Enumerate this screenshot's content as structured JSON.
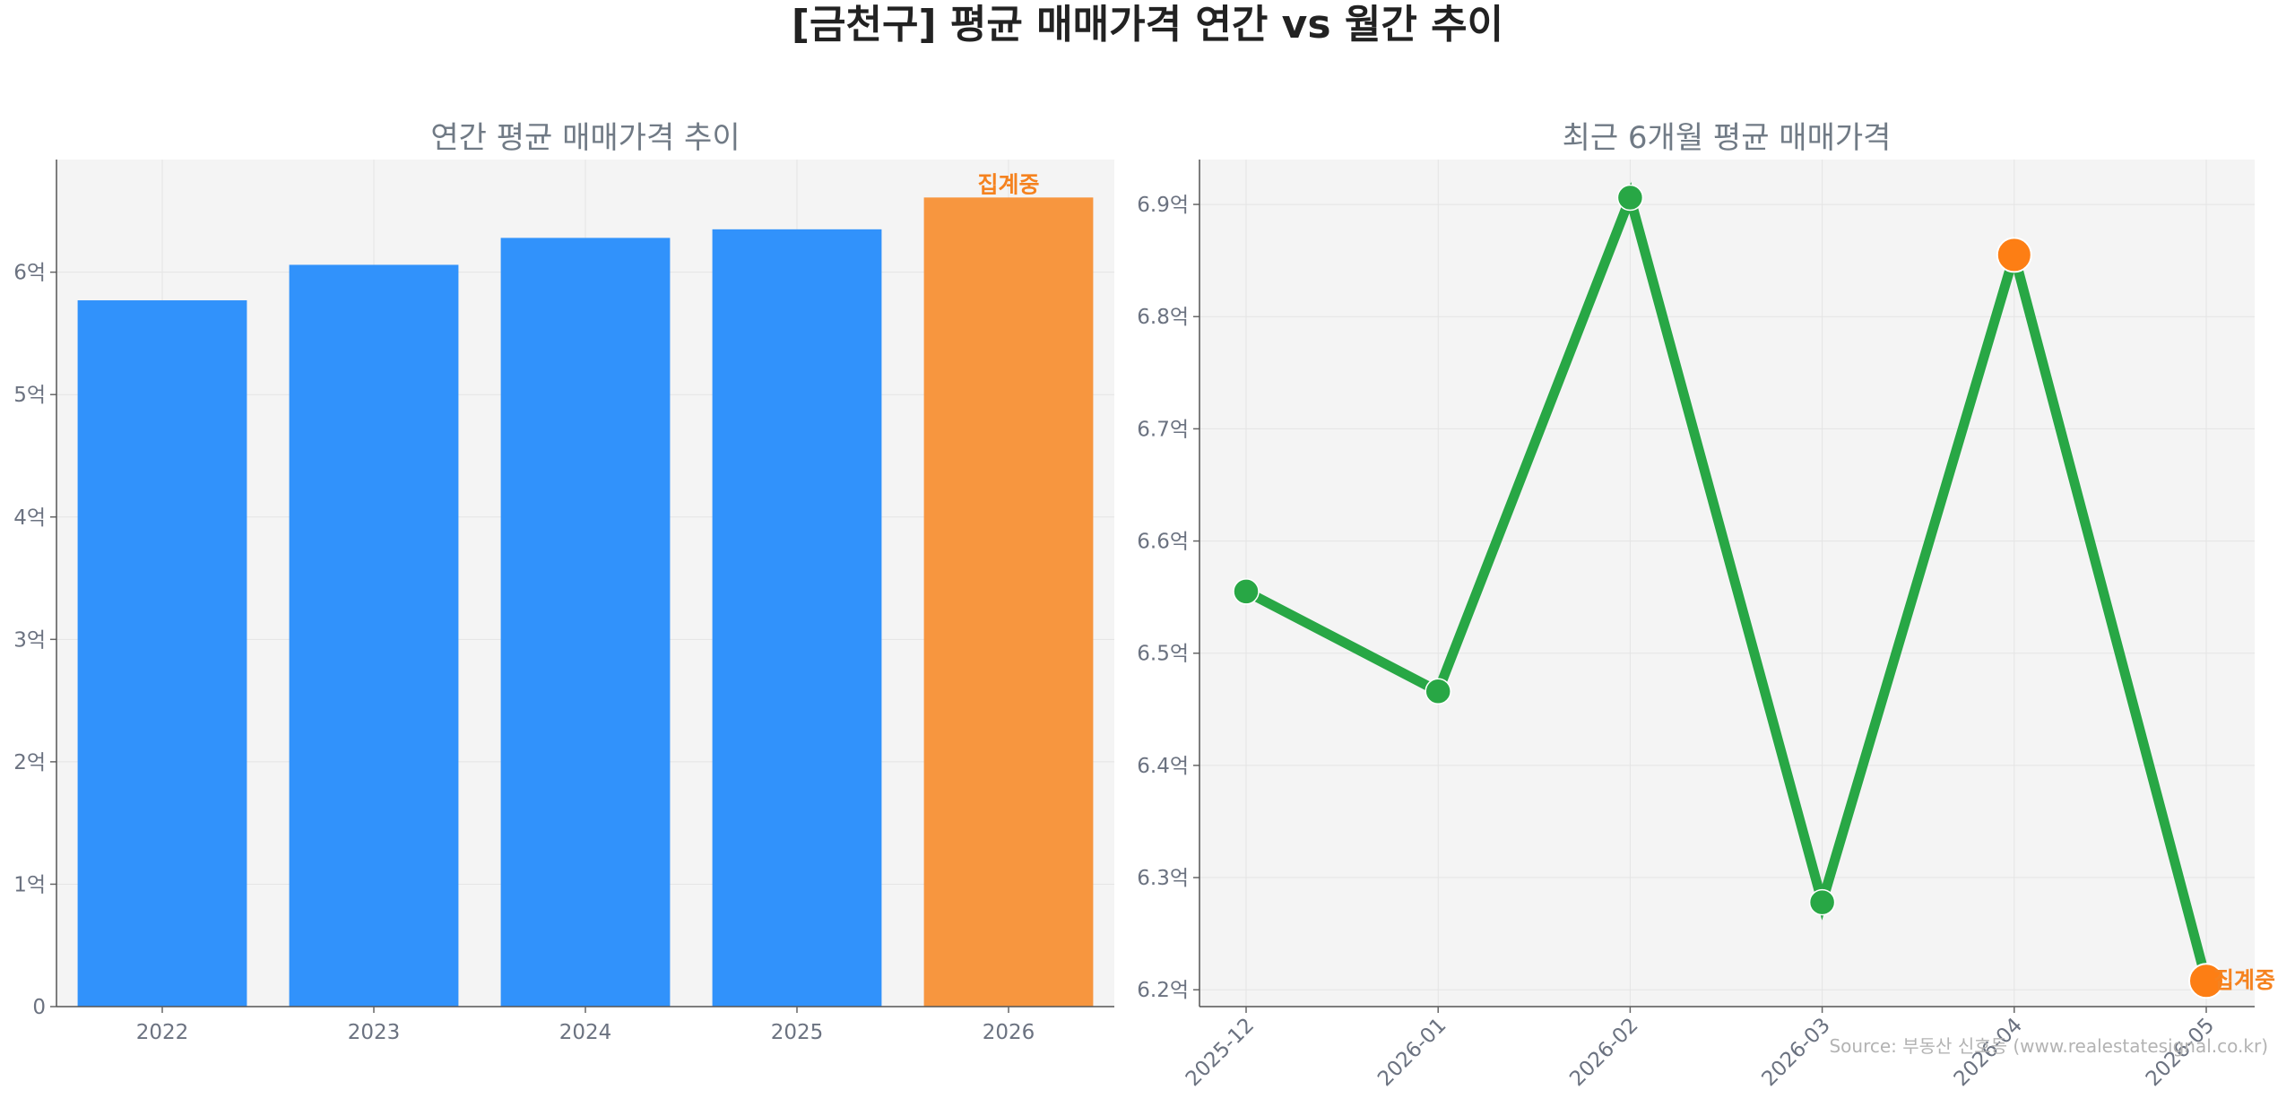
{
  "title": "[금천구] 평균 매매가격 연간 vs 월간 추이",
  "source": "Source: 부동산 신호등 (www.realestatesignal.co.kr)",
  "colors": {
    "bar_complete": "#3192fb",
    "bar_in_progress": "#f7963f",
    "line": "#28a745",
    "marker_highlight": "#fd7e14",
    "panel_bg": "#f4f4f4",
    "grid": "#e4e4e4",
    "note": "#f5821f"
  },
  "chart_data": [
    {
      "type": "bar",
      "title": "연간 평균 매매가격 추이",
      "xlabel": "",
      "ylabel": "",
      "categories": [
        "2022",
        "2023",
        "2024",
        "2025",
        "2026"
      ],
      "values": [
        5.77,
        6.06,
        6.28,
        6.35,
        6.61
      ],
      "value_unit": "억",
      "in_progress_index": 4,
      "in_progress_label": "집계중",
      "ylim": [
        0,
        6.92
      ],
      "yticks": [
        0,
        1,
        2,
        3,
        4,
        5,
        6
      ],
      "ytick_labels": [
        "0",
        "1억",
        "2억",
        "3억",
        "4억",
        "5억",
        "6억"
      ],
      "grid": true
    },
    {
      "type": "line",
      "title": "최근 6개월 평균 매매가격",
      "xlabel": "",
      "ylabel": "",
      "categories": [
        "2025-12",
        "2026-01",
        "2026-02",
        "2026-03",
        "2026-04",
        "2026-05"
      ],
      "values": [
        6.555,
        6.466,
        6.906,
        6.278,
        6.855,
        6.208
      ],
      "value_unit": "억",
      "highlight_indices": [
        4,
        5
      ],
      "in_progress_index": 5,
      "in_progress_label": "집계중",
      "ylim": [
        6.185,
        6.94
      ],
      "yticks": [
        6.2,
        6.3,
        6.4,
        6.5,
        6.6,
        6.7,
        6.8,
        6.9
      ],
      "ytick_labels": [
        "6.2억",
        "6.3억",
        "6.4억",
        "6.5억",
        "6.6억",
        "6.7억",
        "6.8억",
        "6.9억"
      ],
      "grid": true
    }
  ]
}
